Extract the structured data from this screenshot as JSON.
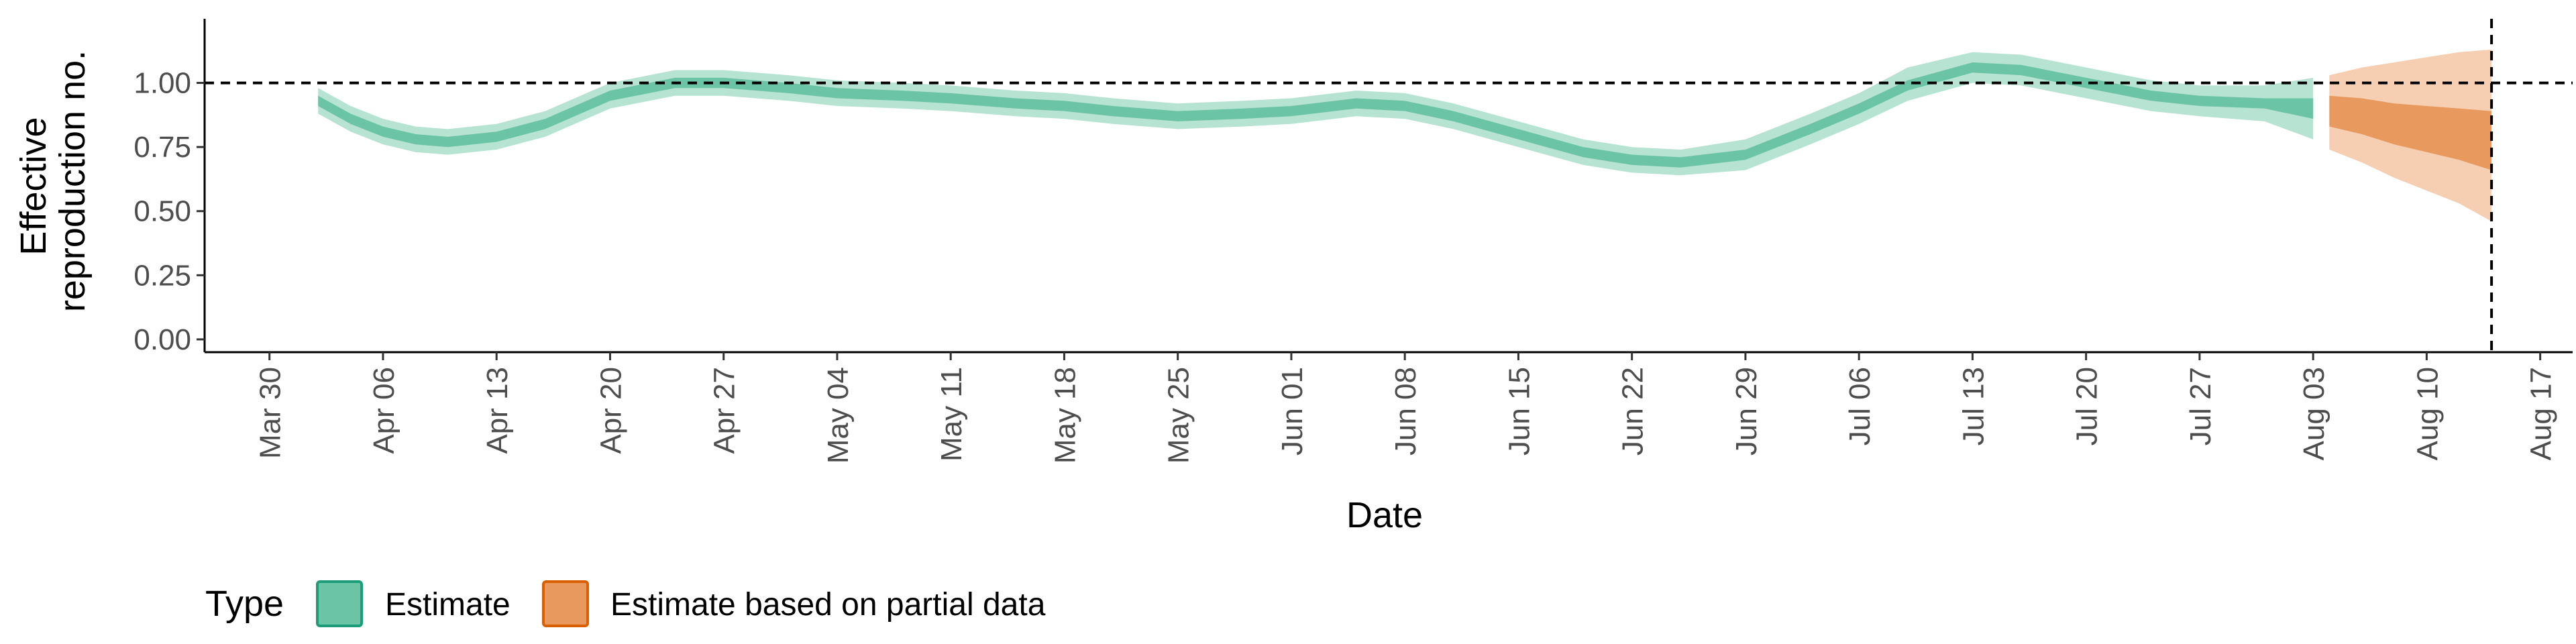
{
  "chart_data": {
    "type": "area",
    "xlabel": "Date",
    "ylabel_lines": [
      "Effective",
      "reproduction no."
    ],
    "x_range": [
      "2020-03-26",
      "2020-08-19"
    ],
    "ylim": [
      -0.05,
      1.25
    ],
    "y_ticks": [
      0.0,
      0.25,
      0.5,
      0.75,
      1.0
    ],
    "y_tick_labels": [
      "0.00",
      "0.25",
      "0.50",
      "0.75",
      "1.00"
    ],
    "x_ticks": [
      "2020-03-30",
      "2020-04-06",
      "2020-04-13",
      "2020-04-20",
      "2020-04-27",
      "2020-05-04",
      "2020-05-11",
      "2020-05-18",
      "2020-05-25",
      "2020-06-01",
      "2020-06-08",
      "2020-06-15",
      "2020-06-22",
      "2020-06-29",
      "2020-07-06",
      "2020-07-13",
      "2020-07-20",
      "2020-07-27",
      "2020-08-03",
      "2020-08-10",
      "2020-08-17"
    ],
    "x_tick_labels": [
      "Mar 30",
      "Apr 06",
      "Apr 13",
      "Apr 20",
      "Apr 27",
      "May 04",
      "May 11",
      "May 18",
      "May 25",
      "Jun 01",
      "Jun 08",
      "Jun 15",
      "Jun 22",
      "Jun 29",
      "Jul 06",
      "Jul 13",
      "Jul 20",
      "Jul 27",
      "Aug 03",
      "Aug 10",
      "Aug 17"
    ],
    "reference_line_y": 1.0,
    "reference_line_x": "2020-08-14",
    "grid": false,
    "legend": {
      "title": "Type",
      "position": "bottom",
      "entries": [
        {
          "label": "Estimate",
          "fill": "#1b9e77"
        },
        {
          "label": "Estimate based on partial data",
          "fill": "#d95f02"
        }
      ]
    },
    "series": [
      {
        "name": "Estimate",
        "color": "#1b9e77",
        "points": [
          {
            "x": "2020-04-02",
            "med": 0.93,
            "lo20": 0.91,
            "hi20": 0.95,
            "lo90": 0.88,
            "hi90": 0.98
          },
          {
            "x": "2020-04-04",
            "med": 0.86,
            "lo20": 0.84,
            "hi20": 0.88,
            "lo90": 0.81,
            "hi90": 0.91
          },
          {
            "x": "2020-04-06",
            "med": 0.81,
            "lo20": 0.79,
            "hi20": 0.83,
            "lo90": 0.76,
            "hi90": 0.86
          },
          {
            "x": "2020-04-08",
            "med": 0.78,
            "lo20": 0.76,
            "hi20": 0.8,
            "lo90": 0.73,
            "hi90": 0.83
          },
          {
            "x": "2020-04-10",
            "med": 0.77,
            "lo20": 0.75,
            "hi20": 0.79,
            "lo90": 0.72,
            "hi90": 0.82
          },
          {
            "x": "2020-04-13",
            "med": 0.79,
            "lo20": 0.77,
            "hi20": 0.81,
            "lo90": 0.74,
            "hi90": 0.84
          },
          {
            "x": "2020-04-16",
            "med": 0.84,
            "lo20": 0.82,
            "hi20": 0.86,
            "lo90": 0.79,
            "hi90": 0.89
          },
          {
            "x": "2020-04-20",
            "med": 0.95,
            "lo20": 0.93,
            "hi20": 0.97,
            "lo90": 0.9,
            "hi90": 1.0
          },
          {
            "x": "2020-04-24",
            "med": 1.0,
            "lo20": 0.98,
            "hi20": 1.02,
            "lo90": 0.95,
            "hi90": 1.05
          },
          {
            "x": "2020-04-27",
            "med": 1.0,
            "lo20": 0.98,
            "hi20": 1.02,
            "lo90": 0.95,
            "hi90": 1.05
          },
          {
            "x": "2020-05-01",
            "med": 0.98,
            "lo20": 0.96,
            "hi20": 1.0,
            "lo90": 0.93,
            "hi90": 1.03
          },
          {
            "x": "2020-05-04",
            "med": 0.96,
            "lo20": 0.94,
            "hi20": 0.98,
            "lo90": 0.91,
            "hi90": 1.01
          },
          {
            "x": "2020-05-08",
            "med": 0.95,
            "lo20": 0.93,
            "hi20": 0.97,
            "lo90": 0.9,
            "hi90": 1.0
          },
          {
            "x": "2020-05-11",
            "med": 0.94,
            "lo20": 0.92,
            "hi20": 0.96,
            "lo90": 0.89,
            "hi90": 0.99
          },
          {
            "x": "2020-05-15",
            "med": 0.92,
            "lo20": 0.9,
            "hi20": 0.94,
            "lo90": 0.87,
            "hi90": 0.97
          },
          {
            "x": "2020-05-18",
            "med": 0.91,
            "lo20": 0.89,
            "hi20": 0.93,
            "lo90": 0.86,
            "hi90": 0.96
          },
          {
            "x": "2020-05-21",
            "med": 0.89,
            "lo20": 0.87,
            "hi20": 0.91,
            "lo90": 0.84,
            "hi90": 0.94
          },
          {
            "x": "2020-05-25",
            "med": 0.87,
            "lo20": 0.85,
            "hi20": 0.89,
            "lo90": 0.82,
            "hi90": 0.92
          },
          {
            "x": "2020-05-29",
            "med": 0.88,
            "lo20": 0.86,
            "hi20": 0.9,
            "lo90": 0.83,
            "hi90": 0.93
          },
          {
            "x": "2020-06-01",
            "med": 0.89,
            "lo20": 0.87,
            "hi20": 0.91,
            "lo90": 0.84,
            "hi90": 0.94
          },
          {
            "x": "2020-06-05",
            "med": 0.92,
            "lo20": 0.9,
            "hi20": 0.94,
            "lo90": 0.87,
            "hi90": 0.97
          },
          {
            "x": "2020-06-08",
            "med": 0.91,
            "lo20": 0.89,
            "hi20": 0.93,
            "lo90": 0.86,
            "hi90": 0.96
          },
          {
            "x": "2020-06-11",
            "med": 0.87,
            "lo20": 0.85,
            "hi20": 0.89,
            "lo90": 0.82,
            "hi90": 0.92
          },
          {
            "x": "2020-06-15",
            "med": 0.8,
            "lo20": 0.78,
            "hi20": 0.82,
            "lo90": 0.75,
            "hi90": 0.85
          },
          {
            "x": "2020-06-19",
            "med": 0.73,
            "lo20": 0.71,
            "hi20": 0.75,
            "lo90": 0.68,
            "hi90": 0.78
          },
          {
            "x": "2020-06-22",
            "med": 0.7,
            "lo20": 0.68,
            "hi20": 0.72,
            "lo90": 0.65,
            "hi90": 0.75
          },
          {
            "x": "2020-06-25",
            "med": 0.69,
            "lo20": 0.67,
            "hi20": 0.71,
            "lo90": 0.64,
            "hi90": 0.74
          },
          {
            "x": "2020-06-29",
            "med": 0.72,
            "lo20": 0.7,
            "hi20": 0.74,
            "lo90": 0.66,
            "hi90": 0.78
          },
          {
            "x": "2020-07-03",
            "med": 0.82,
            "lo20": 0.8,
            "hi20": 0.84,
            "lo90": 0.76,
            "hi90": 0.88
          },
          {
            "x": "2020-07-06",
            "med": 0.9,
            "lo20": 0.88,
            "hi20": 0.92,
            "lo90": 0.84,
            "hi90": 0.96
          },
          {
            "x": "2020-07-09",
            "med": 0.99,
            "lo20": 0.97,
            "hi20": 1.01,
            "lo90": 0.93,
            "hi90": 1.06
          },
          {
            "x": "2020-07-13",
            "med": 1.06,
            "lo20": 1.04,
            "hi20": 1.08,
            "lo90": 1.0,
            "hi90": 1.12
          },
          {
            "x": "2020-07-16",
            "med": 1.05,
            "lo20": 1.03,
            "hi20": 1.07,
            "lo90": 0.99,
            "hi90": 1.11
          },
          {
            "x": "2020-07-20",
            "med": 1.0,
            "lo20": 0.98,
            "hi20": 1.02,
            "lo90": 0.94,
            "hi90": 1.06
          },
          {
            "x": "2020-07-24",
            "med": 0.95,
            "lo20": 0.93,
            "hi20": 0.97,
            "lo90": 0.89,
            "hi90": 1.01
          },
          {
            "x": "2020-07-27",
            "med": 0.93,
            "lo20": 0.91,
            "hi20": 0.95,
            "lo90": 0.87,
            "hi90": 0.99
          },
          {
            "x": "2020-07-31",
            "med": 0.92,
            "lo20": 0.9,
            "hi20": 0.94,
            "lo90": 0.85,
            "hi90": 0.99
          },
          {
            "x": "2020-08-03",
            "med": 0.9,
            "lo20": 0.86,
            "hi20": 0.94,
            "lo90": 0.78,
            "hi90": 1.02
          }
        ]
      },
      {
        "name": "Estimate based on partial data",
        "color": "#d95f02",
        "points": [
          {
            "x": "2020-08-04",
            "med": 0.89,
            "lo20": 0.83,
            "hi20": 0.95,
            "lo90": 0.74,
            "hi90": 1.03
          },
          {
            "x": "2020-08-06",
            "med": 0.87,
            "lo20": 0.8,
            "hi20": 0.94,
            "lo90": 0.69,
            "hi90": 1.06
          },
          {
            "x": "2020-08-08",
            "med": 0.84,
            "lo20": 0.76,
            "hi20": 0.92,
            "lo90": 0.63,
            "hi90": 1.08
          },
          {
            "x": "2020-08-10",
            "med": 0.82,
            "lo20": 0.73,
            "hi20": 0.91,
            "lo90": 0.58,
            "hi90": 1.1
          },
          {
            "x": "2020-08-12",
            "med": 0.79,
            "lo20": 0.7,
            "hi20": 0.9,
            "lo90": 0.53,
            "hi90": 1.12
          },
          {
            "x": "2020-08-14",
            "med": 0.77,
            "lo20": 0.66,
            "hi20": 0.89,
            "lo90": 0.46,
            "hi90": 1.13
          }
        ]
      }
    ]
  }
}
